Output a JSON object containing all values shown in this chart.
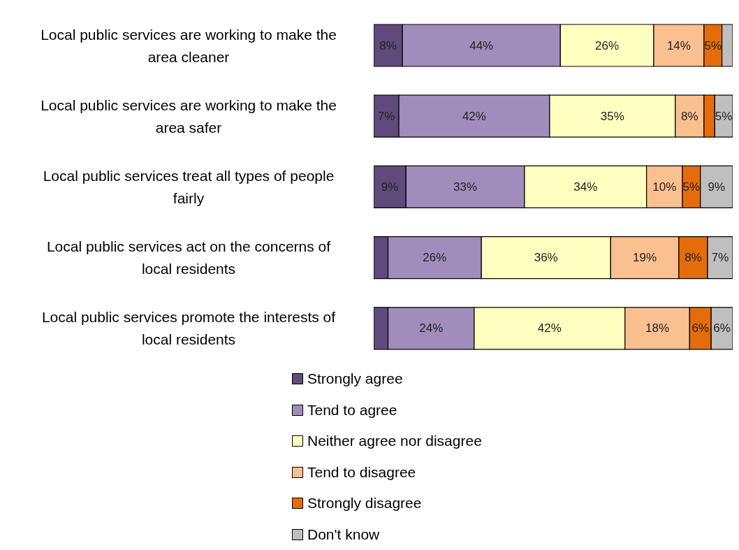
{
  "chart_data": {
    "type": "bar",
    "orientation": "horizontal",
    "stacked": true,
    "categories": [
      "Local public services are working to make the area cleaner",
      "Local public services are working to make the area safer",
      "Local public services treat all types of people fairly",
      "Local public services act on the concerns of local residents",
      "Local public services promote the interests of local residents"
    ],
    "series": [
      {
        "name": "Strongly agree",
        "color": "#604a7b",
        "values": [
          8,
          7,
          9,
          4,
          4
        ],
        "value_labels": [
          "8%",
          "7%",
          "9%",
          null,
          null
        ]
      },
      {
        "name": "Tend to agree",
        "color": "#a18dbb",
        "values": [
          44,
          42,
          33,
          26,
          24
        ],
        "value_labels": [
          "44%",
          "42%",
          "33%",
          "26%",
          "24%"
        ]
      },
      {
        "name": "Neither agree nor disagree",
        "color": "#ffffc0",
        "values": [
          26,
          35,
          34,
          36,
          42
        ],
        "value_labels": [
          "26%",
          "35%",
          "34%",
          "36%",
          "42%"
        ]
      },
      {
        "name": "Tend to disagree",
        "color": "#fac090",
        "values": [
          14,
          8,
          10,
          19,
          18
        ],
        "value_labels": [
          "14%",
          "8%",
          "10%",
          "19%",
          "18%"
        ]
      },
      {
        "name": "Strongly disagree",
        "color": "#e46c0a",
        "values": [
          5,
          3,
          5,
          8,
          6
        ],
        "value_labels": [
          "5%",
          null,
          "5%",
          "8%",
          "6%"
        ]
      },
      {
        "name": "Don't know",
        "color": "#bfbfbf",
        "values": [
          3,
          5,
          9,
          7,
          6
        ],
        "value_labels": [
          null,
          "5%",
          "9%",
          "7%",
          "6%"
        ]
      }
    ],
    "xlim": [
      0,
      100
    ],
    "tick_labels": "y",
    "grid": false,
    "legend": "bottom"
  }
}
